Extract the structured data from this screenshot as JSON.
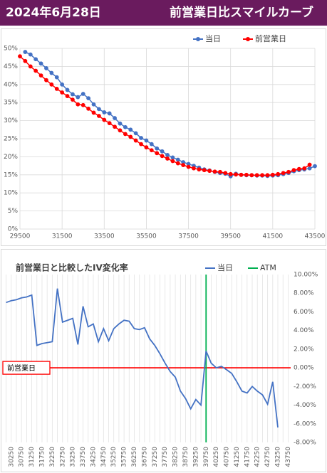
{
  "header": {
    "date": "2024年6月28日",
    "title": "前営業日比スマイルカーブ"
  },
  "chart_data": [
    {
      "type": "line",
      "markers": true,
      "x": [
        29500,
        29750,
        30000,
        30250,
        30500,
        30750,
        31000,
        31250,
        31500,
        31750,
        32000,
        32250,
        32500,
        32750,
        33000,
        33250,
        33500,
        33750,
        34000,
        34250,
        34500,
        34750,
        35000,
        35250,
        35500,
        35750,
        36000,
        36250,
        36500,
        36750,
        37000,
        37250,
        37500,
        37750,
        38000,
        38250,
        38500,
        38750,
        39000,
        39250,
        39500,
        39750,
        40000,
        40250,
        40500,
        40750,
        41000,
        41250,
        41500,
        41750,
        42000,
        42250,
        42500,
        42750,
        43000,
        43250,
        43500
      ],
      "series": [
        {
          "name": "当日",
          "color": "#4472c4",
          "values": [
            null,
            49,
            48.3,
            47,
            45.8,
            44.5,
            43.2,
            42,
            40,
            38.5,
            37.3,
            36.5,
            37.4,
            36.2,
            34.5,
            33.2,
            32.3,
            32,
            30.7,
            29.2,
            28.2,
            27.5,
            26.5,
            25.2,
            24.5,
            23.5,
            22.3,
            21.5,
            20.5,
            19.8,
            19.2,
            18.5,
            18,
            17.5,
            17,
            16.5,
            16.2,
            15.8,
            15.5,
            15.3,
            14.6,
            15.3,
            15,
            14.9,
            14.9,
            14.8,
            14.8,
            14.7,
            14.8,
            14.9,
            15.2,
            15.5,
            16,
            16.3,
            16.5,
            16.8,
            17.4
          ]
        },
        {
          "name": "前営業日",
          "color": "#ff0000",
          "values": [
            47.8,
            46.5,
            45,
            43.8,
            42.5,
            41.2,
            40,
            38.8,
            37.8,
            36.8,
            35.8,
            34.5,
            34.3,
            33.3,
            32.2,
            31.3,
            30.2,
            29.3,
            28.3,
            27.3,
            26.3,
            25.5,
            24.5,
            23.5,
            22.6,
            21.8,
            21,
            20.2,
            19.5,
            18.8,
            18.2,
            17.7,
            17.2,
            16.8,
            16.5,
            16.3,
            16.1,
            15.9,
            15.8,
            15.5,
            15.2,
            15.1,
            15,
            15,
            14.9,
            14.9,
            14.9,
            14.9,
            15,
            15.2,
            15.5,
            15.8,
            16.3,
            16.6,
            16.8,
            17.8,
            null
          ]
        }
      ],
      "xlim": [
        29500,
        43500
      ],
      "xticks": [
        29500,
        31500,
        33500,
        35500,
        37500,
        39500,
        41500,
        43500
      ],
      "ylim": [
        0,
        50
      ],
      "yticks": [
        {
          "value": 0,
          "label": "0%"
        },
        {
          "value": 5,
          "label": "5%"
        },
        {
          "value": 10,
          "label": "10%"
        },
        {
          "value": 15,
          "label": "15%"
        },
        {
          "value": 20,
          "label": "20%"
        },
        {
          "value": 25,
          "label": "25%"
        },
        {
          "value": 30,
          "label": "30%"
        },
        {
          "value": 35,
          "label": "35%"
        },
        {
          "value": 40,
          "label": "40%"
        },
        {
          "value": 45,
          "label": "45%"
        },
        {
          "value": 50,
          "label": "50%"
        }
      ],
      "grid": true,
      "legend": "top-right"
    },
    {
      "type": "line",
      "markers": false,
      "title": "前営業日と比較したIV変化率",
      "categories": [
        null,
        30250,
        null,
        30750,
        null,
        31250,
        null,
        31750,
        null,
        32250,
        null,
        32750,
        null,
        33250,
        null,
        33750,
        null,
        34250,
        null,
        34750,
        null,
        35250,
        null,
        35750,
        null,
        36250,
        null,
        36750,
        null,
        37250,
        null,
        37750,
        null,
        38250,
        null,
        38750,
        null,
        39250,
        null,
        39750,
        null,
        40250,
        null,
        40750,
        null,
        41250,
        null,
        41750,
        null,
        42250,
        null,
        42750,
        null,
        43250,
        null,
        43750
      ],
      "series": [
        {
          "name": "当日",
          "color": "#4472c4",
          "axis": "y2",
          "values": [
            7.0,
            7.2,
            7.3,
            7.5,
            7.6,
            7.8,
            2.4,
            2.6,
            2.7,
            2.8,
            8.5,
            4.9,
            5.1,
            5.3,
            2.5,
            6.6,
            4.4,
            4.7,
            2.8,
            4.2,
            2.9,
            4.2,
            4.7,
            5.1,
            5.0,
            4.2,
            4.1,
            4.3,
            3.1,
            2.4,
            1.5,
            0.5,
            -0.4,
            -1.0,
            -2.5,
            -3.3,
            -4.4,
            -3.4,
            -4.0,
            1.8,
            0.5,
            0.0,
            0.15,
            -0.2,
            -0.6,
            -1.5,
            -2.5,
            -2.7,
            -2.0,
            -2.5,
            -2.9,
            -3.9,
            -1.5,
            -6.4,
            null,
            null
          ]
        }
      ],
      "atm": {
        "name": "ATM",
        "color": "#00b050",
        "at": 39750
      },
      "reference": {
        "label": "前営業日",
        "value": 0,
        "color": "#ff0000"
      },
      "y2lim": [
        -8,
        10
      ],
      "y2ticks": [
        {
          "value": 10,
          "label": "10.00%"
        },
        {
          "value": 8,
          "label": "8.00%"
        },
        {
          "value": 6,
          "label": "6.00%"
        },
        {
          "value": 4,
          "label": "4.00%"
        },
        {
          "value": 2,
          "label": "2.00%"
        },
        {
          "value": 0,
          "label": "0.00%"
        },
        {
          "value": -2,
          "label": "-2.00%"
        },
        {
          "value": -4,
          "label": "-4.00%"
        },
        {
          "value": -6,
          "label": "-6.00%"
        },
        {
          "value": -8,
          "label": "-8.00%"
        }
      ],
      "grid": true,
      "legend": "top-right"
    }
  ]
}
